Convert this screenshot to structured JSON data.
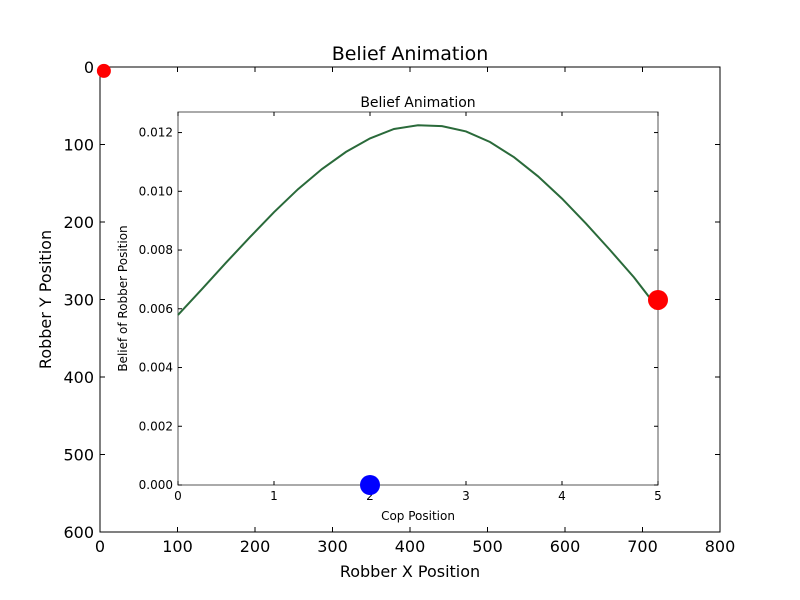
{
  "chart_data": [
    {
      "type": "scatter",
      "title": "Belief Animation",
      "xlabel": "Robber X Position",
      "ylabel": "Robber Y Position",
      "xlim": [
        0,
        800
      ],
      "ylim": [
        600,
        0
      ],
      "y_inverted": true,
      "xticks": [
        "0",
        "100",
        "200",
        "300",
        "400",
        "500",
        "600",
        "700",
        "800"
      ],
      "yticks": [
        "0",
        "100",
        "200",
        "300",
        "400",
        "500",
        "600"
      ],
      "points": [
        {
          "name": "robber-marker",
          "x": 5,
          "y": 5,
          "color": "#ff0000"
        }
      ]
    },
    {
      "type": "line",
      "title": "Belief Animation",
      "xlabel": "Cop Position",
      "ylabel": "Belief of Robber Position",
      "xlim": [
        0,
        5
      ],
      "ylim": [
        0,
        0.0127
      ],
      "xticks": [
        "0",
        "1",
        "2",
        "3",
        "4",
        "5"
      ],
      "yticks": [
        "0.000",
        "0.002",
        "0.004",
        "0.006",
        "0.008",
        "0.010",
        "0.012"
      ],
      "series": [
        {
          "name": "belief",
          "color": "#2a6a3a",
          "x": [
            0,
            0.25,
            0.5,
            0.75,
            1,
            1.25,
            1.5,
            1.75,
            2,
            2.25,
            2.5,
            2.75,
            3,
            3.25,
            3.5,
            3.75,
            4,
            4.25,
            4.5,
            4.75,
            5
          ],
          "values": [
            0.00579,
            0.00667,
            0.00757,
            0.00844,
            0.00929,
            0.01007,
            0.01076,
            0.01134,
            0.0118,
            0.01212,
            0.01225,
            0.01222,
            0.01204,
            0.01168,
            0.01116,
            0.01051,
            0.00975,
            0.0089,
            0.008,
            0.00707,
            0.00601
          ]
        }
      ],
      "markers": [
        {
          "name": "cop-marker",
          "x": 2,
          "y": 0,
          "color": "#0000ff"
        },
        {
          "name": "robber-belief-marker",
          "x": 5,
          "y": 0.0063,
          "color": "#ff0000"
        }
      ]
    }
  ]
}
